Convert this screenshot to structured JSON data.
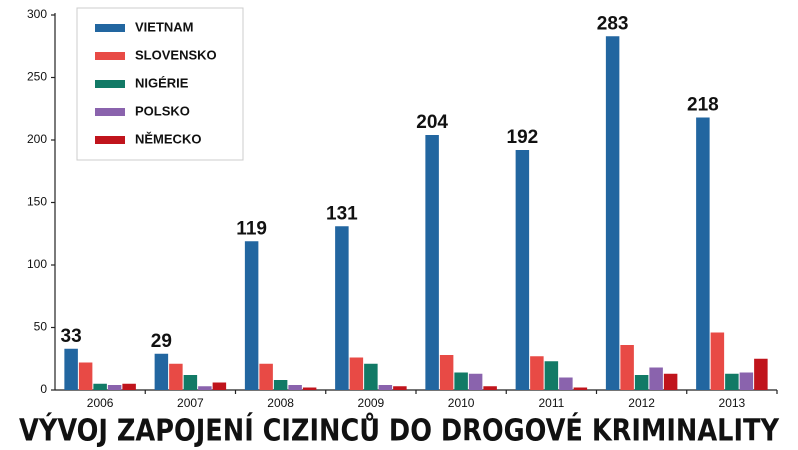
{
  "chart_data": {
    "type": "bar",
    "title": "VÝVOJ ZAPOJENÍ CIZINCŮ DO DROGOVÉ KRIMINALITY",
    "categories": [
      "2006",
      "2007",
      "2008",
      "2009",
      "2010",
      "2011",
      "2012",
      "2013"
    ],
    "series": [
      {
        "name": "VIETNAM",
        "color": "#2266a0",
        "values": [
          33,
          29,
          119,
          131,
          204,
          192,
          283,
          218
        ],
        "data_labels": true
      },
      {
        "name": "SLOVENSKO",
        "color": "#e84a45",
        "values": [
          22,
          21,
          21,
          26,
          28,
          27,
          36,
          46
        ]
      },
      {
        "name": "NIGÉRIE",
        "color": "#127a66",
        "values": [
          5,
          12,
          8,
          21,
          14,
          23,
          12,
          13
        ]
      },
      {
        "name": "POLSKO",
        "color": "#8a63ad",
        "values": [
          4,
          3,
          4,
          4,
          13,
          10,
          18,
          14
        ]
      },
      {
        "name": "NĚMECKO",
        "color": "#c0141c",
        "values": [
          5,
          6,
          2,
          3,
          3,
          2,
          13,
          25
        ]
      }
    ],
    "ylim": [
      0,
      300
    ],
    "yticks": [
      0,
      50,
      100,
      150,
      200,
      250,
      300
    ],
    "legend": "top-left"
  }
}
